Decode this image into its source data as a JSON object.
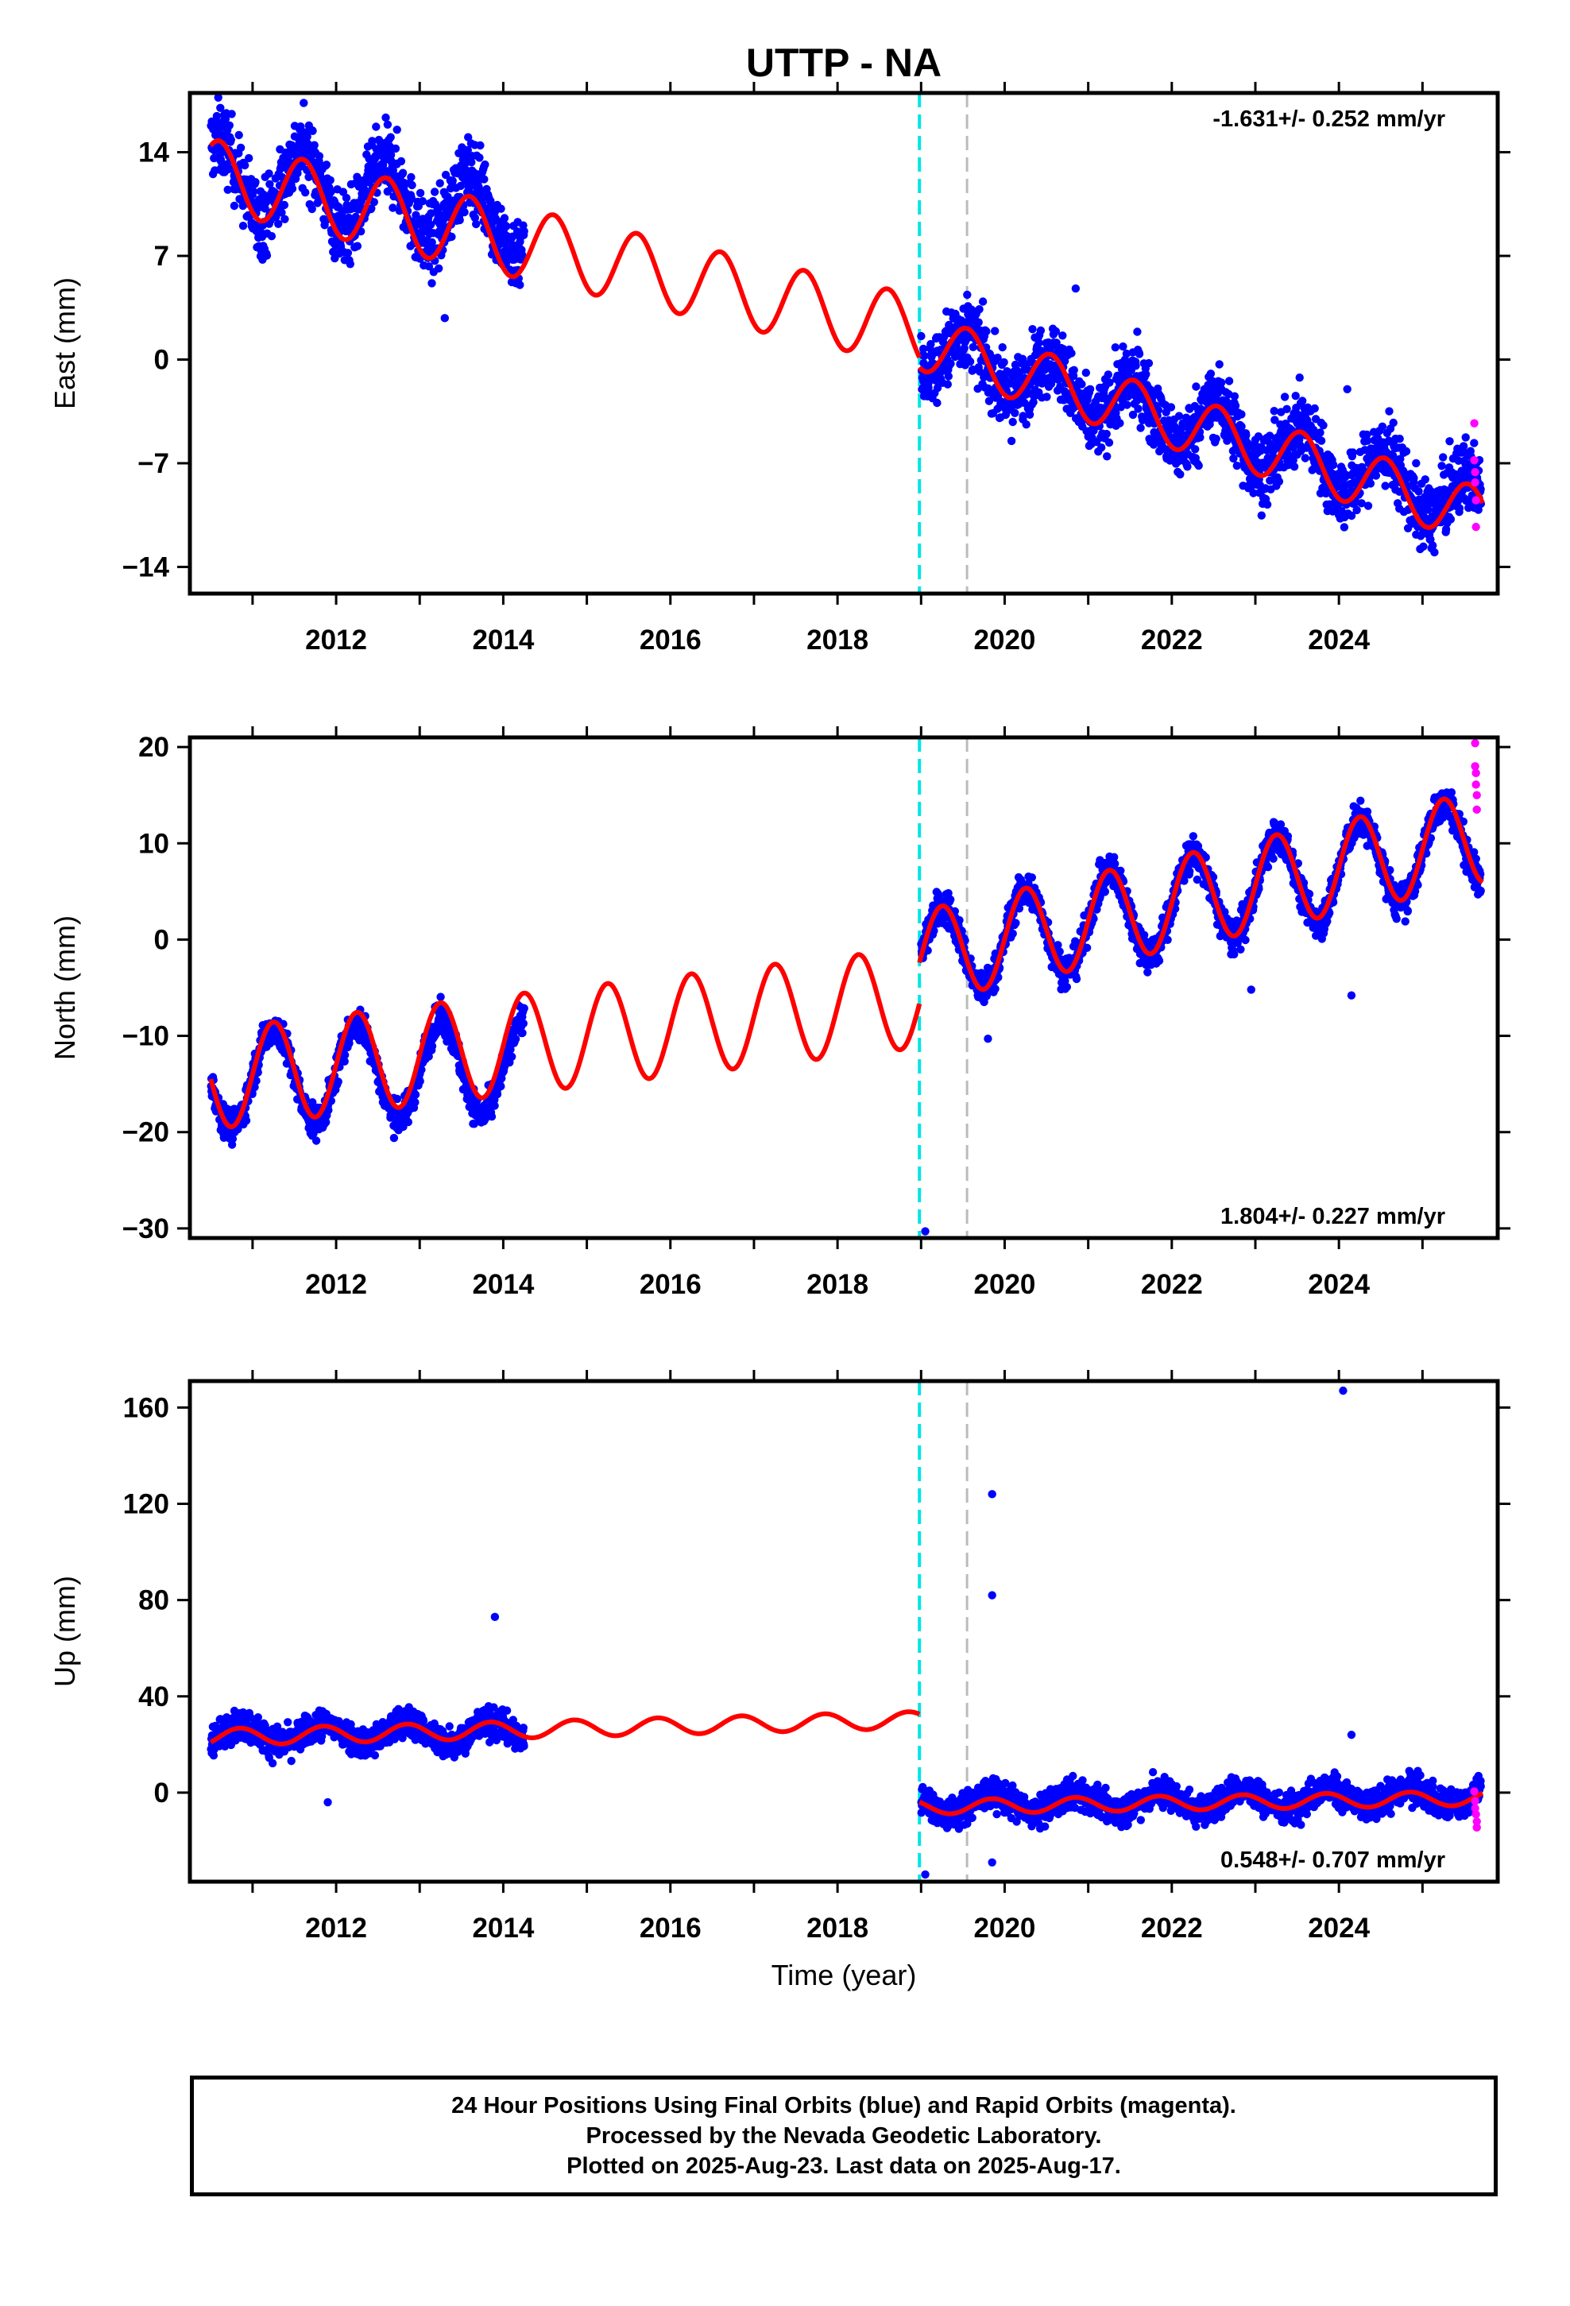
{
  "title": "UTTP - NA",
  "colors": {
    "final": "#0000ff",
    "rapid": "#ff00ff",
    "model": "#ff0000",
    "break1": "#00e5e5",
    "break2": "#bbbbbb"
  },
  "chart_data": [
    {
      "type": "scatter",
      "ylabel": "East (mm)",
      "yticks": [
        14,
        7,
        0,
        -7,
        -14
      ],
      "ytick_labels": [
        "14",
        "7",
        "0",
        "−7",
        "−14"
      ],
      "xticks": [
        2012,
        2014,
        2016,
        2018,
        2020,
        2022,
        2024
      ],
      "xlim": [
        2010.25,
        2025.9
      ],
      "ylim": [
        -15.8,
        18
      ],
      "rate_text": "-1.631+/- 0.252 mm/yr",
      "rate_pos": "top-right",
      "segments": [
        {
          "t0": 2010.5,
          "t1": 2014.25,
          "v0": 12.5,
          "rate": -0.8,
          "amp": 2.4,
          "phase": 0.6,
          "noise": 1.8
        },
        {
          "t0": 2019.0,
          "t1": 2025.7,
          "v0": 1.0,
          "rate": -1.631,
          "amp": 1.8,
          "phase": 0.55,
          "noise": 1.7
        }
      ],
      "model": [
        {
          "t0": 2010.5,
          "t1": 2018.98,
          "v0": 12.5,
          "rate": -1.25,
          "amp": 2.4,
          "phase": 0.6
        },
        {
          "t0": 2018.98,
          "t1": 2025.72,
          "v0": 1.2,
          "rate": -1.75,
          "amp": 1.9,
          "phase": 0.55
        }
      ],
      "outliers": [
        {
          "t": 2013.3,
          "v": 2.8
        },
        {
          "t": 2024.1,
          "v": -2.0
        },
        {
          "t": 2020.85,
          "v": 4.8
        }
      ],
      "rapid": [
        {
          "t": 2025.62,
          "v": -4.3
        },
        {
          "t": 2025.62,
          "v": -6.8
        },
        {
          "t": 2025.63,
          "v": -7.6
        },
        {
          "t": 2025.63,
          "v": -8.3
        },
        {
          "t": 2025.64,
          "v": -9.5
        },
        {
          "t": 2025.64,
          "v": -11.3
        }
      ]
    },
    {
      "type": "scatter",
      "ylabel": "North (mm)",
      "yticks": [
        20,
        10,
        0,
        -10,
        -20,
        -30
      ],
      "ytick_labels": [
        "20",
        "10",
        "0",
        "−10",
        "−20",
        "−30"
      ],
      "xticks": [
        2012,
        2014,
        2016,
        2018,
        2020,
        2022,
        2024
      ],
      "xlim": [
        2010.25,
        2025.9
      ],
      "ylim": [
        -31,
        21
      ],
      "rate_text": "1.804+/- 0.227 mm/yr",
      "rate_pos": "bottom-right",
      "segments": [
        {
          "t0": 2010.5,
          "t1": 2014.25,
          "v0": -14.5,
          "rate": 0.4,
          "amp": 5.0,
          "phase": 0.25,
          "noise": 1.2
        },
        {
          "t0": 2019.0,
          "t1": 2025.7,
          "v0": -1.8,
          "rate": 1.804,
          "amp": 4.7,
          "phase": 0.25,
          "noise": 1.3
        }
      ],
      "model": [
        {
          "t0": 2010.5,
          "t1": 2018.98,
          "v0": -14.5,
          "rate": 1.0,
          "amp": 5.2,
          "phase": 0.25
        },
        {
          "t0": 2018.98,
          "t1": 2025.72,
          "v0": -1.8,
          "rate": 1.85,
          "amp": 4.8,
          "phase": 0.25
        }
      ],
      "outliers": [
        {
          "t": 2019.05,
          "v": -30.3
        },
        {
          "t": 2019.8,
          "v": -10.3
        },
        {
          "t": 2022.95,
          "v": -5.2
        },
        {
          "t": 2024.15,
          "v": -5.8
        }
      ],
      "rapid": [
        {
          "t": 2025.63,
          "v": 20.4
        },
        {
          "t": 2025.63,
          "v": 18.0
        },
        {
          "t": 2025.64,
          "v": 17.3
        },
        {
          "t": 2025.64,
          "v": 16.1
        },
        {
          "t": 2025.65,
          "v": 15.0
        },
        {
          "t": 2025.65,
          "v": 13.5
        }
      ]
    },
    {
      "type": "scatter",
      "ylabel": "Up (mm)",
      "yticks": [
        160,
        120,
        80,
        40,
        0
      ],
      "ytick_labels": [
        "160",
        "120",
        "80",
        "40",
        "0"
      ],
      "xticks": [
        2012,
        2014,
        2016,
        2018,
        2020,
        2022,
        2024
      ],
      "xlim": [
        2010.25,
        2025.9
      ],
      "ylim": [
        -37,
        171
      ],
      "rate_text": "0.548+/- 0.707 mm/yr",
      "rate_pos": "bottom-right",
      "xlabel": "Time (year)",
      "segments": [
        {
          "t0": 2010.5,
          "t1": 2014.25,
          "v0": 24.0,
          "rate": 0.4,
          "amp": 4.0,
          "phase": 0.85,
          "noise": 4.5
        },
        {
          "t0": 2019.0,
          "t1": 2025.7,
          "v0": -5.0,
          "rate": 0.548,
          "amp": 4.0,
          "phase": 0.85,
          "noise": 4.5
        }
      ],
      "model": [
        {
          "t0": 2010.5,
          "t1": 2018.98,
          "v0": 23.0,
          "rate": 0.85,
          "amp": 3.5,
          "phase": 0.85
        },
        {
          "t0": 2018.98,
          "t1": 2025.72,
          "v0": -6.0,
          "rate": 0.55,
          "amp": 3.0,
          "phase": 0.85
        }
      ],
      "outliers": [
        {
          "t": 2013.9,
          "v": 73
        },
        {
          "t": 2019.85,
          "v": 124
        },
        {
          "t": 2019.85,
          "v": 82
        },
        {
          "t": 2024.05,
          "v": 167
        },
        {
          "t": 2024.15,
          "v": 24
        },
        {
          "t": 2011.9,
          "v": -4
        },
        {
          "t": 2019.05,
          "v": -34
        },
        {
          "t": 2019.85,
          "v": -29
        }
      ],
      "rapid": [
        {
          "t": 2025.62,
          "v": 0.5
        },
        {
          "t": 2025.63,
          "v": -3.5
        },
        {
          "t": 2025.63,
          "v": -6.5
        },
        {
          "t": 2025.64,
          "v": -9.0
        },
        {
          "t": 2025.65,
          "v": -12.0
        },
        {
          "t": 2025.65,
          "v": -14.5
        }
      ]
    }
  ],
  "breaks": [
    2018.98,
    2019.55
  ],
  "footer": {
    "line1": "24 Hour Positions Using Final Orbits (blue) and Rapid Orbits (magenta).",
    "line2": "Processed by the Nevada Geodetic Laboratory.",
    "line3": "Plotted on 2025-Aug-23. Last data on 2025-Aug-17."
  }
}
